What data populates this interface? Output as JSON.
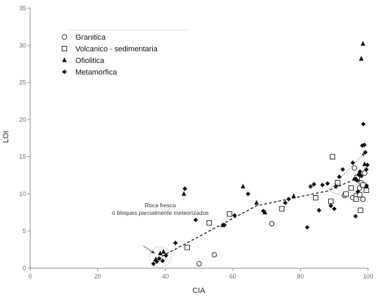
{
  "chart_data": {
    "type": "scatter",
    "title": "",
    "xlabel": "CIA",
    "ylabel": "LOI",
    "xlim": [
      0,
      100
    ],
    "ylim": [
      0,
      35
    ],
    "xticks": [
      0,
      20,
      40,
      60,
      80,
      100
    ],
    "yticks": [
      0,
      5,
      10,
      15,
      20,
      25,
      30,
      35
    ],
    "grid": false,
    "legend_position": "top-left",
    "series": [
      {
        "name": "Granitica",
        "marker": "circle-open",
        "points": [
          [
            50,
            0.6
          ],
          [
            54.5,
            1.8
          ],
          [
            71.5,
            6.0
          ],
          [
            93,
            9.8
          ],
          [
            95.5,
            9.5
          ],
          [
            96.5,
            9.8
          ],
          [
            97.5,
            10.8
          ],
          [
            98,
            11.5
          ],
          [
            98.5,
            9.3
          ],
          [
            96,
            13.5
          ],
          [
            99,
            12.8
          ]
        ]
      },
      {
        "name": "Volcanico - sedimentaria",
        "marker": "square-open",
        "points": [
          [
            46.5,
            2.8
          ],
          [
            53,
            6.1
          ],
          [
            59,
            7.3
          ],
          [
            74.5,
            8.0
          ],
          [
            84.5,
            9.5
          ],
          [
            89,
            9.0
          ],
          [
            89.5,
            15.0
          ],
          [
            91,
            11.5
          ],
          [
            93.5,
            10.0
          ],
          [
            95,
            10.8
          ],
          [
            96.5,
            9.3
          ],
          [
            97.5,
            9.9
          ],
          [
            97.8,
            7.8
          ],
          [
            98.5,
            11.2
          ],
          [
            99.5,
            10.5
          ],
          [
            96.8,
            12.2
          ]
        ]
      },
      {
        "name": "Ofiolitica",
        "marker": "triangle-filled",
        "points": [
          [
            37.2,
            1.2
          ],
          [
            38.5,
            2.0
          ],
          [
            39.5,
            2.2
          ],
          [
            45.5,
            10.0
          ],
          [
            57,
            5.8
          ],
          [
            63,
            11.0
          ],
          [
            67,
            8.8
          ],
          [
            69.5,
            7.5
          ],
          [
            78,
            9.7
          ],
          [
            98,
            28.2
          ],
          [
            98.5,
            30.2
          ],
          [
            96.5,
            12.0
          ],
          [
            97.5,
            12.8
          ],
          [
            99,
            14.0
          ],
          [
            99.5,
            11.0
          ]
        ]
      },
      {
        "name": "Metamorfica",
        "marker": "diamond-filled",
        "points": [
          [
            36.5,
            0.6
          ],
          [
            37.5,
            0.9
          ],
          [
            38.2,
            1.3
          ],
          [
            39.2,
            1.0
          ],
          [
            40.2,
            1.7
          ],
          [
            43,
            3.4
          ],
          [
            45.8,
            10.7
          ],
          [
            49,
            6.5
          ],
          [
            57.5,
            5.8
          ],
          [
            60.5,
            7.1
          ],
          [
            64.5,
            10.0
          ],
          [
            69,
            7.7
          ],
          [
            75.5,
            8.8
          ],
          [
            76.5,
            9.3
          ],
          [
            82,
            5.5
          ],
          [
            83,
            11.0
          ],
          [
            84,
            11.3
          ],
          [
            85.5,
            7.8
          ],
          [
            86.5,
            11.2
          ],
          [
            88,
            11.4
          ],
          [
            89,
            8.4
          ],
          [
            90,
            8.0
          ],
          [
            90.5,
            11.0
          ],
          [
            91.5,
            12.3
          ],
          [
            92.5,
            13.3
          ],
          [
            95.5,
            14.2
          ],
          [
            96,
            12.0
          ],
          [
            96.3,
            7.0
          ],
          [
            96.8,
            11.8
          ],
          [
            97.2,
            12.6
          ],
          [
            97.6,
            13.0
          ],
          [
            98,
            12.4
          ],
          [
            98.3,
            16.5
          ],
          [
            98.6,
            19.4
          ],
          [
            98.9,
            16.6
          ],
          [
            99.2,
            15.6
          ],
          [
            99.5,
            13.3
          ],
          [
            99.8,
            13.9
          ],
          [
            99.6,
            11.1
          ],
          [
            97,
            10.3
          ]
        ]
      }
    ],
    "trend_line": [
      [
        36.5,
        1.0
      ],
      [
        67,
        8.4
      ],
      [
        88,
        10.4
      ],
      [
        99,
        12.5
      ]
    ],
    "fan_arrows": [
      {
        "from": [
          88,
          10.4
        ],
        "to": [
          99,
          15.5
        ]
      },
      {
        "from": [
          88,
          10.4
        ],
        "to": [
          96,
          9.3
        ]
      }
    ],
    "annotation": {
      "lines": [
        "Roca fresca",
        "o bloques parcialmente meteorizados"
      ],
      "target": [
        38.5,
        1.5
      ]
    }
  }
}
